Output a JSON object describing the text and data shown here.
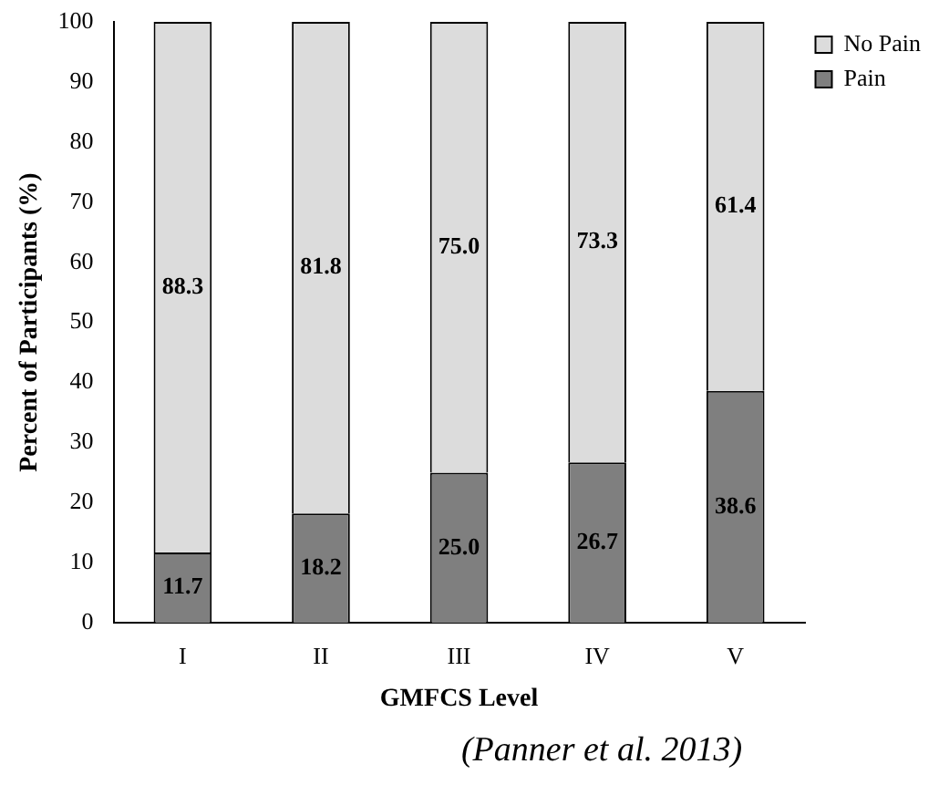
{
  "chart_data": {
    "type": "bar",
    "stacked": true,
    "xlabel": "GMFCS Level",
    "ylabel": "Percent of Participants (%)",
    "categories": [
      "I",
      "II",
      "III",
      "IV",
      "V"
    ],
    "series": [
      {
        "name": "Pain",
        "color": "#7f7f7f",
        "values": [
          11.7,
          18.2,
          25.0,
          26.7,
          38.6
        ],
        "value_labels": [
          "11.7",
          "18.2",
          "25.0",
          "26.7",
          "38.6"
        ]
      },
      {
        "name": "No Pain",
        "color": "#dcdcdc",
        "values": [
          88.3,
          81.8,
          75.0,
          73.3,
          61.4
        ],
        "value_labels": [
          "88.3",
          "81.8",
          "75.0",
          "73.3",
          "61.4"
        ]
      }
    ],
    "ylim": [
      0,
      100
    ],
    "yticks": [
      0,
      10,
      20,
      30,
      40,
      50,
      60,
      70,
      80,
      90,
      100
    ],
    "grid": false,
    "legend": "top right",
    "annotations": [
      "(Panner et al. 2013)"
    ]
  }
}
